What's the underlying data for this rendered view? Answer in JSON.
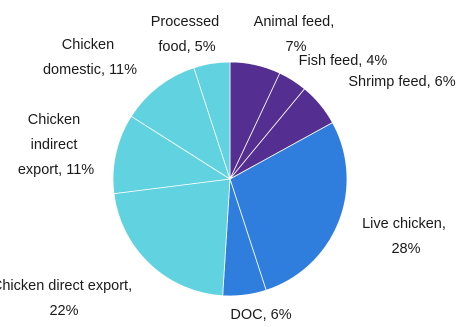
{
  "chart_data": {
    "type": "pie",
    "start_angle_deg": 90,
    "direction": "clockwise",
    "slices": [
      {
        "label": "Animal feed",
        "value": 7,
        "value_label": "7%",
        "color": "#542e91"
      },
      {
        "label": "Fish feed",
        "value": 4,
        "value_label": "4%",
        "color": "#542e91"
      },
      {
        "label": "Shrimp feed",
        "value": 6,
        "value_label": "6%",
        "color": "#542e91"
      },
      {
        "label": "Live chicken",
        "value": 28,
        "value_label": "28%",
        "color": "#2f7ede"
      },
      {
        "label": "DOC",
        "value": 6,
        "value_label": "6%",
        "color": "#2f7ede"
      },
      {
        "label": "Chicken direct export",
        "value": 22,
        "value_label": "22%",
        "color": "#61d2e0"
      },
      {
        "label": "Chicken indirect export",
        "value": 11,
        "value_label": "11%",
        "color": "#61d2e0"
      },
      {
        "label": "Chicken domestic",
        "value": 11,
        "value_label": "11%",
        "color": "#61d2e0"
      },
      {
        "label": "Processed food",
        "value": 5,
        "value_label": "5%",
        "color": "#61d2e0"
      }
    ]
  }
}
